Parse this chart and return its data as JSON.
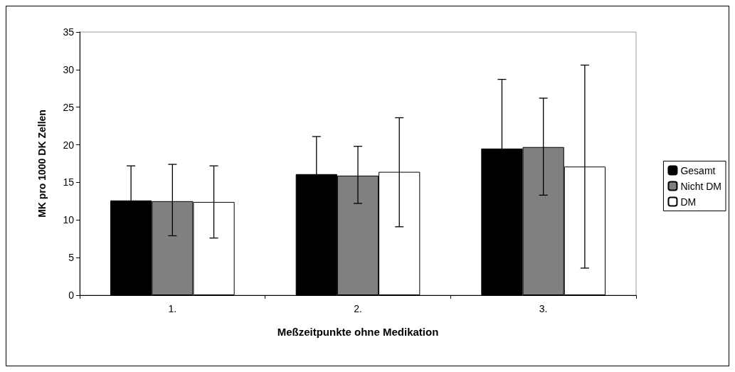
{
  "chart_data": {
    "type": "bar",
    "xlabel": "Meßzeitpunkte ohne Medikation",
    "ylabel": "MK pro 1000 DK Zellen",
    "categories": [
      "1.",
      "2.",
      "3."
    ],
    "series": [
      {
        "name": "Gesamt",
        "color": "#000000",
        "values": [
          12.6,
          16.1,
          19.5
        ],
        "errors": [
          4.6,
          5.0,
          9.2
        ]
      },
      {
        "name": "Nicht DM",
        "color": "#808080",
        "values": [
          12.5,
          15.9,
          19.7
        ],
        "errors": [
          [
            7.9,
            17.4
          ],
          [
            12.2,
            19.8
          ],
          [
            13.3,
            26.2
          ]
        ]
      },
      {
        "name": "DM",
        "color": "#ffffff",
        "values": [
          12.4,
          16.4,
          17.1
        ],
        "errors": [
          [
            7.6,
            17.2
          ],
          [
            9.1,
            23.6
          ],
          [
            3.6,
            30.6
          ]
        ]
      }
    ],
    "ylim": [
      0,
      35
    ],
    "yticks": [
      0,
      5,
      10,
      15,
      20,
      25,
      30,
      35
    ],
    "grid": false,
    "legend": "right"
  }
}
